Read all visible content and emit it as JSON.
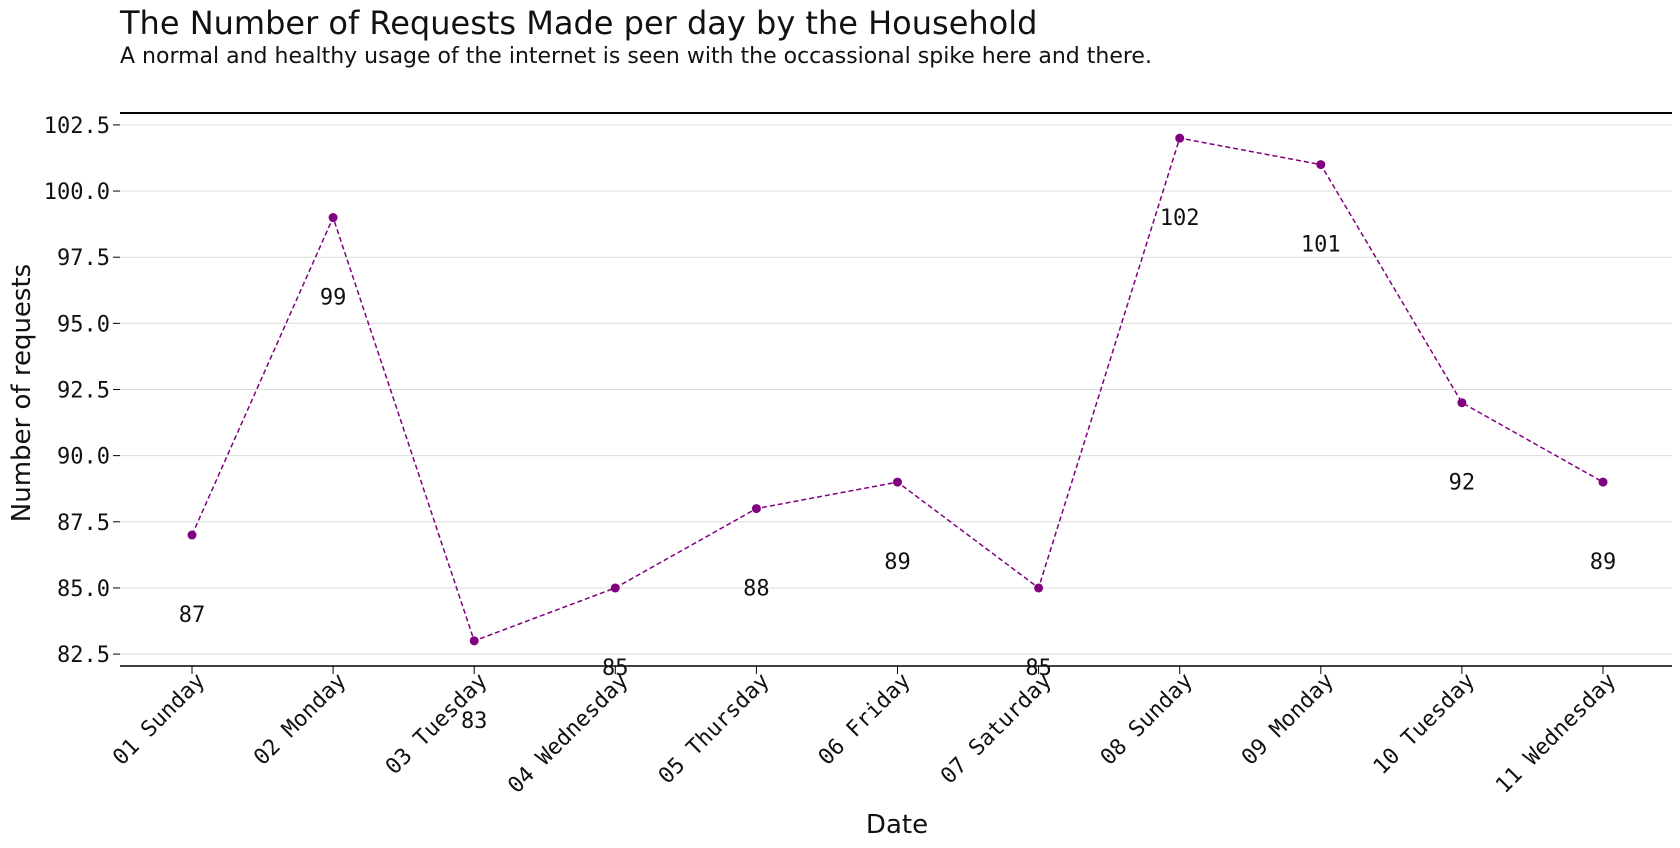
{
  "chart_data": {
    "type": "line",
    "title": "The Number of Requests Made per day by the Household",
    "subtitle": "A normal and healthy usage of the internet is seen with the occassional spike here and there.",
    "xlabel": "Date",
    "ylabel": "Number of requests",
    "categories": [
      "01 Sunday",
      "02 Monday",
      "03 Tuesday",
      "04 Wednesday",
      "05 Thursday",
      "06 Friday",
      "07 Saturday",
      "08 Sunday",
      "09 Monday",
      "10 Tuesday",
      "11 Wednesday"
    ],
    "series": [
      {
        "values": [
          87,
          99,
          83,
          85,
          88,
          89,
          85,
          102,
          101,
          92,
          89
        ]
      }
    ],
    "data_labels": [
      "87",
      "99",
      "83",
      "85",
      "88",
      "89",
      "85",
      "102",
      "101",
      "92",
      "89"
    ],
    "yticks": [
      "82.5",
      "85.0",
      "87.5",
      "90.0",
      "92.5",
      "95.0",
      "97.5",
      "100.0",
      "102.5"
    ],
    "ylim": [
      82.05,
      102.95
    ],
    "grid": true,
    "line_style": "dashed",
    "colors": {
      "series": "#800080",
      "grid": "#dcdcdc",
      "axis": "#000000"
    }
  }
}
